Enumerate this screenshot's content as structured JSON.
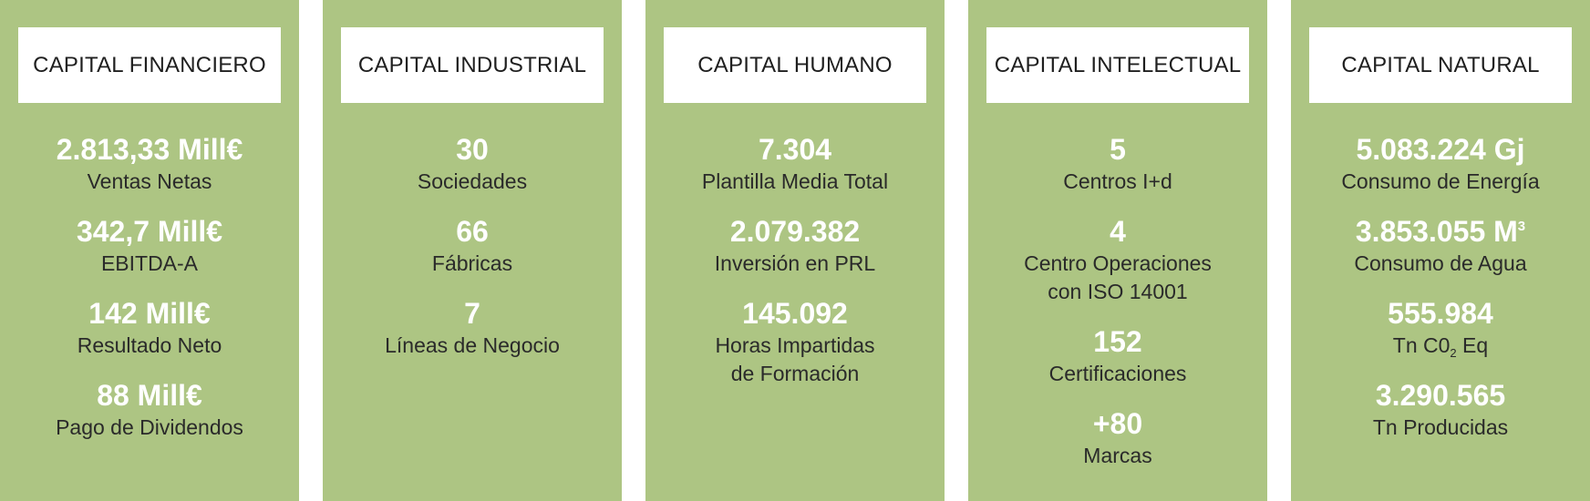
{
  "panels": [
    {
      "title": "CAPITAL FINANCIERO",
      "metrics": [
        {
          "value": "2.813,33 Mill€",
          "label": "Ventas Netas"
        },
        {
          "value": "342,7 Mill€",
          "label": "EBITDA-A"
        },
        {
          "value": "142 Mill€",
          "label": "Resultado Neto"
        },
        {
          "value": "88 Mill€",
          "label": "Pago de Dividendos"
        }
      ]
    },
    {
      "title": "CAPITAL INDUSTRIAL",
      "metrics": [
        {
          "value": "30",
          "label": "Sociedades"
        },
        {
          "value": "66",
          "label": "Fábricas"
        },
        {
          "value": "7",
          "label": "Líneas de Negocio"
        }
      ]
    },
    {
      "title": "CAPITAL HUMANO",
      "metrics": [
        {
          "value": "7.304",
          "label": "Plantilla Media Total"
        },
        {
          "value": "2.079.382",
          "label": "Inversión en PRL"
        },
        {
          "value": "145.092",
          "label_line1": "Horas Impartidas",
          "label_line2": "de Formación"
        }
      ]
    },
    {
      "title": "CAPITAL INTELECTUAL",
      "metrics": [
        {
          "value": "5",
          "label": "Centros I+d"
        },
        {
          "value": "4",
          "label_line1": "Centro Operaciones",
          "label_line2": "con ISO 14001"
        },
        {
          "value": "152",
          "label": "Certificaciones"
        },
        {
          "value": "+80",
          "label": "Marcas"
        }
      ]
    },
    {
      "title": "CAPITAL NATURAL",
      "metrics": [
        {
          "value": "5.083.224 Gj",
          "label": "Consumo de Energía"
        },
        {
          "value_main": "3.853.055 M",
          "value_sup": "3",
          "label": "Consumo de Agua"
        },
        {
          "value": "555.984",
          "label_pre": "Tn C0",
          "label_sub": "2",
          "label_post": " Eq"
        },
        {
          "value": "3.290.565",
          "label": "Tn Producidas"
        }
      ]
    }
  ]
}
